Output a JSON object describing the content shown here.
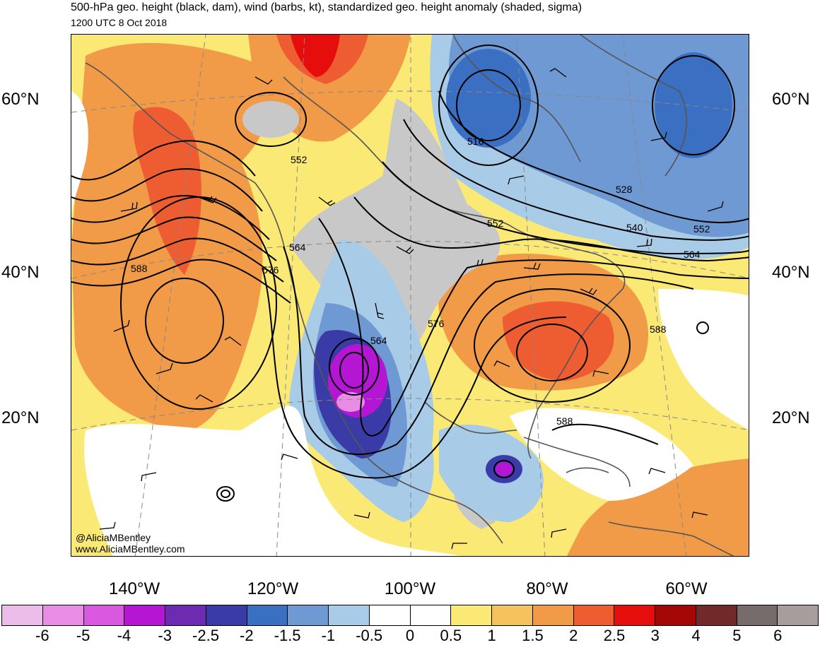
{
  "title": "500-hPa geo. height (black, dam), wind (barbs, kt), standardized geo. height anomaly (shaded, sigma)",
  "subtitle": "1200 UTC 8 Oct 2018",
  "credit": {
    "handle": "@AliciaMBentley",
    "url": "www.AliciaMBentley.com"
  },
  "lat_labels": [
    "60°N",
    "40°N",
    "20°N"
  ],
  "lon_labels": [
    "140°W",
    "120°W",
    "100°W",
    "80°W",
    "60°W"
  ],
  "contour_labels": [
    "516",
    "528",
    "540",
    "552",
    "552",
    "552",
    "564",
    "564",
    "564",
    "576",
    "576",
    "588",
    "588",
    "588"
  ],
  "colorbar": {
    "colors": [
      "#ebbde8",
      "#e78de5",
      "#d858df",
      "#b416d3",
      "#6c2bb0",
      "#3a3ba6",
      "#3b6fc2",
      "#6e99d2",
      "#a8cbe7",
      "#ffffff",
      "#ffffff",
      "#fbe976",
      "#f4c25f",
      "#f19a48",
      "#ee5d32",
      "#e60d0d",
      "#a50707",
      "#722929",
      "#776c6c",
      "#a89d9d"
    ],
    "labels": [
      "-6",
      "-5",
      "-4",
      "-3",
      "-2.5",
      "-2",
      "-1.5",
      "-1",
      "-0.5",
      "0",
      "0.5",
      "1",
      "1.5",
      "2",
      "2.5",
      "3",
      "4",
      "5",
      "6"
    ]
  }
}
